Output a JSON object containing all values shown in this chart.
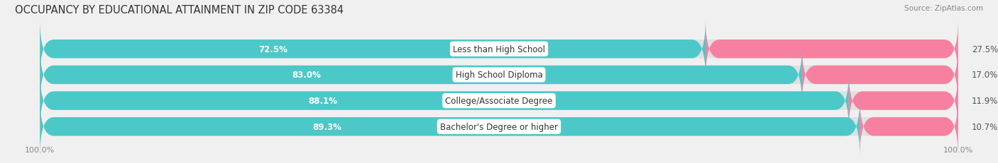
{
  "title": "OCCUPANCY BY EDUCATIONAL ATTAINMENT IN ZIP CODE 63384",
  "source": "Source: ZipAtlas.com",
  "categories": [
    "Less than High School",
    "High School Diploma",
    "College/Associate Degree",
    "Bachelor's Degree or higher"
  ],
  "owner_values": [
    72.5,
    83.0,
    88.1,
    89.3
  ],
  "renter_values": [
    27.5,
    17.0,
    11.9,
    10.7
  ],
  "owner_color": "#4CC8C8",
  "renter_color": "#F780A0",
  "background_color": "#f0f0f0",
  "row_bg_color": "#e0e0e0",
  "title_fontsize": 10.5,
  "value_fontsize": 8.5,
  "cat_fontsize": 8.5,
  "tick_fontsize": 8,
  "source_fontsize": 7.5,
  "legend_fontsize": 8.5,
  "bar_height": 0.72,
  "x_left_label": "100.0%",
  "x_right_label": "100.0%"
}
